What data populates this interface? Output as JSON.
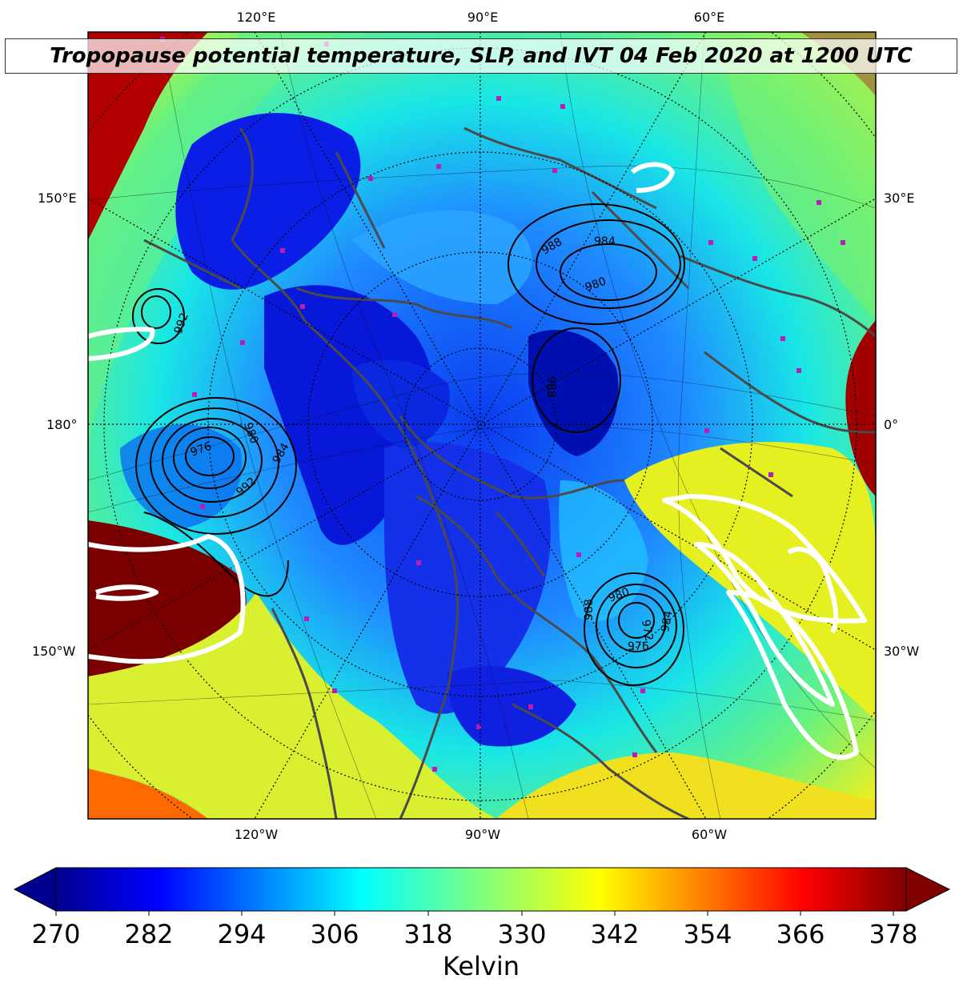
{
  "title": "Tropopause potential temperature, SLP, and IVT 04 Feb 2020 at 1200 UTC",
  "top_lon_labels": [
    "120°E",
    "90°E",
    "60°E"
  ],
  "bottom_lon_labels": [
    "120°W",
    "90°W",
    "60°W"
  ],
  "left_lat_labels": [
    "150°E",
    "180°",
    "150°W"
  ],
  "right_lat_labels": [
    "30°E",
    "0°",
    "30°W"
  ],
  "slp_contour_labels": [
    "988",
    "984",
    "980",
    "992",
    "988",
    "976",
    "980",
    "984",
    "980",
    "976",
    "984",
    "988",
    "972",
    "992"
  ],
  "colorbar": {
    "label": "Kelvin",
    "ticks": [
      "270",
      "282",
      "294",
      "306",
      "318",
      "330",
      "342",
      "354",
      "366",
      "378"
    ],
    "range": [
      270,
      378
    ],
    "colormap": "jet"
  },
  "colors": {
    "frame": "#000000",
    "coastline": "#4a4a4a",
    "slp_contour": "#000000",
    "ivt_contour": "#ffffff",
    "station_marker": "#b51fb5"
  }
}
